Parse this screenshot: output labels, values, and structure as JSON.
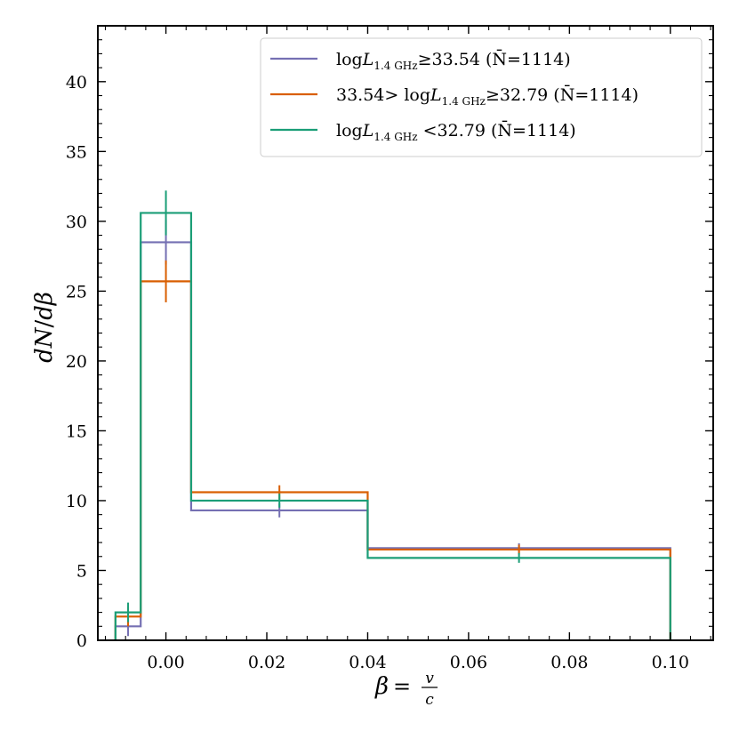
{
  "chart_data": {
    "type": "step",
    "xlabel": "β = v/c",
    "ylabel": "dN/dβ",
    "xlim": [
      -0.0135,
      0.1085
    ],
    "ylim": [
      0,
      44
    ],
    "x_ticks": [
      0.0,
      0.02,
      0.04,
      0.06,
      0.08,
      0.1
    ],
    "x_tick_labels": [
      "0.00",
      "0.02",
      "0.04",
      "0.06",
      "0.08",
      "0.10"
    ],
    "y_ticks": [
      0,
      5,
      10,
      15,
      20,
      25,
      30,
      35,
      40
    ],
    "y_tick_labels": [
      "0",
      "5",
      "10",
      "15",
      "20",
      "25",
      "30",
      "35",
      "40"
    ],
    "bin_edges": [
      -0.01,
      -0.005,
      0.005,
      0.04,
      0.1
    ],
    "bin_centers": [
      -0.0075,
      0.0,
      0.0225,
      0.07
    ],
    "legend_position": "top-right",
    "series": [
      {
        "name": "logL1.4 GHz≥33.54 (N=1114)",
        "legend": {
          "pre": "log",
          "var": "L",
          "sub": "1.4 GHz",
          "post": "≥33.54 (N̄=1114)"
        },
        "color": "#7570b3",
        "values": [
          1.0,
          28.5,
          9.3,
          6.6
        ],
        "errors": [
          0.7,
          1.6,
          0.5,
          0.35
        ]
      },
      {
        "name": "33.54> logL1.4 GHz≥32.79 (N=1114)",
        "legend": {
          "pre": "33.54> log",
          "var": "L",
          "sub": "1.4 GHz",
          "post": "≥32.79 (N̄=1114)"
        },
        "color": "#d95f02",
        "values": [
          1.7,
          25.7,
          10.6,
          6.5
        ],
        "errors": [
          0.7,
          1.5,
          0.5,
          0.35
        ]
      },
      {
        "name": "logL1.4 GHz <32.79 (N=1114)",
        "legend": {
          "pre": "log",
          "var": "L",
          "sub": "1.4 GHz",
          "post": " <32.79 (N̄=1114)"
        },
        "color": "#1b9e77",
        "values": [
          2.0,
          30.6,
          10.0,
          5.9
        ],
        "errors": [
          0.7,
          1.6,
          0.5,
          0.35
        ]
      }
    ]
  }
}
